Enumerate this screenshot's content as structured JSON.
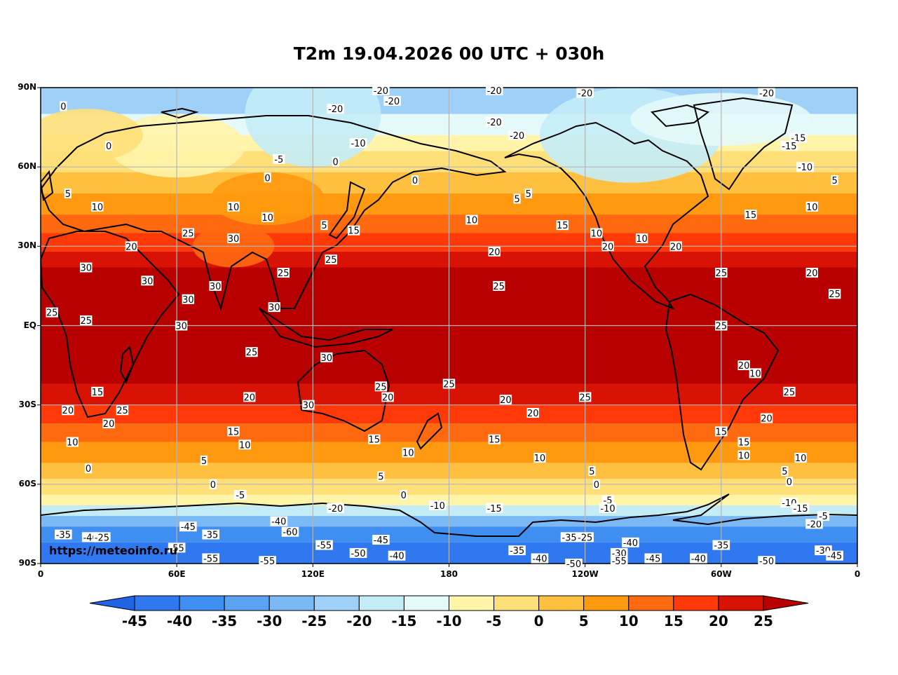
{
  "title": "T2m 19.04.2026 00 UTC + 030h",
  "watermark": "https://meteoinfo.ru",
  "lat_labels": [
    "90N",
    "60N",
    "30N",
    "EQ",
    "30S",
    "60S",
    "90S"
  ],
  "lon_labels": [
    "0",
    "60E",
    "120E",
    "180",
    "120W",
    "60W",
    "0"
  ],
  "colorbar": {
    "levels": [
      "-45",
      "-40",
      "-35",
      "-30",
      "-25",
      "-20",
      "-15",
      "-10",
      "-5",
      "0",
      "5",
      "10",
      "15",
      "20",
      "25"
    ],
    "colors": [
      "#1f64e6",
      "#2f78f0",
      "#3f8ef2",
      "#5aa2f2",
      "#7ab9f6",
      "#9ed0f8",
      "#c4ecf7",
      "#e4f9f9",
      "#fff4a8",
      "#ffe078",
      "#ffc040",
      "#ff9a10",
      "#ff6a10",
      "#ff3a08",
      "#d81204",
      "#b80000"
    ],
    "extend": "both"
  },
  "contour_labels": [
    {
      "lon": 20,
      "lat": 22,
      "t": "30"
    },
    {
      "lon": 5,
      "lat": 5,
      "t": "25"
    },
    {
      "lon": 20,
      "lat": 2,
      "t": "25"
    },
    {
      "lon": 65,
      "lat": 10,
      "t": "30"
    },
    {
      "lon": 25,
      "lat": -25,
      "t": "15"
    },
    {
      "lon": 12,
      "lat": -32,
      "t": "20"
    },
    {
      "lon": 30,
      "lat": -37,
      "t": "20"
    },
    {
      "lon": 36,
      "lat": -32,
      "t": "25"
    },
    {
      "lon": 14,
      "lat": -44,
      "t": "10"
    },
    {
      "lon": 21,
      "lat": -54,
      "t": "0"
    },
    {
      "lon": 85,
      "lat": 33,
      "t": "30"
    },
    {
      "lon": 65,
      "lat": 35,
      "t": "25"
    },
    {
      "lon": 77,
      "lat": 15,
      "t": "30"
    },
    {
      "lon": 103,
      "lat": 7,
      "t": "30"
    },
    {
      "lon": 107,
      "lat": 20,
      "t": "25"
    },
    {
      "lon": 128,
      "lat": 25,
      "t": "25"
    },
    {
      "lon": 118,
      "lat": -30,
      "t": "30"
    },
    {
      "lon": 126,
      "lat": -12,
      "t": "30"
    },
    {
      "lon": 150,
      "lat": -23,
      "t": "25"
    },
    {
      "lon": 162,
      "lat": -48,
      "t": "10"
    },
    {
      "lon": 180,
      "lat": -22,
      "t": "25"
    },
    {
      "lon": 190,
      "lat": 40,
      "t": "10"
    },
    {
      "lon": 200,
      "lat": 28,
      "t": "20"
    },
    {
      "lon": 202,
      "lat": 15,
      "t": "25"
    },
    {
      "lon": 215,
      "lat": 50,
      "t": "5"
    },
    {
      "lon": 230,
      "lat": 38,
      "t": "15"
    },
    {
      "lon": 240,
      "lat": -27,
      "t": "25"
    },
    {
      "lon": 217,
      "lat": -33,
      "t": "20"
    },
    {
      "lon": 200,
      "lat": -43,
      "t": "15"
    },
    {
      "lon": 220,
      "lat": -50,
      "t": "10"
    },
    {
      "lon": 150,
      "lat": -57,
      "t": "5"
    },
    {
      "lon": 245,
      "lat": 35,
      "t": "10"
    },
    {
      "lon": 250,
      "lat": 30,
      "t": "20"
    },
    {
      "lon": 265,
      "lat": 33,
      "t": "10"
    },
    {
      "lon": 280,
      "lat": 30,
      "t": "20"
    },
    {
      "lon": 300,
      "lat": 20,
      "t": "25"
    },
    {
      "lon": 340,
      "lat": 20,
      "t": "20"
    },
    {
      "lon": 350,
      "lat": 12,
      "t": "25"
    },
    {
      "lon": 300,
      "lat": 0,
      "t": "25"
    },
    {
      "lon": 310,
      "lat": -15,
      "t": "20"
    },
    {
      "lon": 315,
      "lat": -18,
      "t": "10"
    },
    {
      "lon": 330,
      "lat": -25,
      "t": "25"
    },
    {
      "lon": 320,
      "lat": -35,
      "t": "20"
    },
    {
      "lon": 310,
      "lat": -44,
      "t": "15"
    },
    {
      "lon": 310,
      "lat": -49,
      "t": "10"
    },
    {
      "lon": 300,
      "lat": -40,
      "t": "15"
    },
    {
      "lon": 340,
      "lat": 45,
      "t": "10"
    },
    {
      "lon": 313,
      "lat": 42,
      "t": "15"
    },
    {
      "lon": 350,
      "lat": 55,
      "t": "5"
    },
    {
      "lon": 337,
      "lat": 60,
      "t": "-10"
    },
    {
      "lon": 210,
      "lat": 72,
      "t": "-20"
    },
    {
      "lon": 240,
      "lat": 88,
      "t": "-20"
    },
    {
      "lon": 200,
      "lat": 89,
      "t": "-20"
    },
    {
      "lon": 150,
      "lat": 89,
      "t": "-20"
    },
    {
      "lon": 155,
      "lat": 85,
      "t": "-20"
    },
    {
      "lon": 200,
      "lat": 77,
      "t": "-20"
    },
    {
      "lon": 130,
      "lat": 82,
      "t": "-20"
    },
    {
      "lon": 140,
      "lat": 69,
      "t": "-10"
    },
    {
      "lon": 320,
      "lat": 88,
      "t": "-20"
    },
    {
      "lon": 334,
      "lat": 71,
      "t": "-15"
    },
    {
      "lon": 105,
      "lat": 63,
      "t": "-5"
    },
    {
      "lon": 100,
      "lat": 56,
      "t": "0"
    },
    {
      "lon": 130,
      "lat": 62,
      "t": "0"
    },
    {
      "lon": 165,
      "lat": 55,
      "t": "0"
    },
    {
      "lon": 210,
      "lat": 48,
      "t": "5"
    },
    {
      "lon": 330,
      "lat": 68,
      "t": "-15"
    },
    {
      "lon": 10,
      "lat": 83,
      "t": "0"
    },
    {
      "lon": 30,
      "lat": 68,
      "t": "0"
    },
    {
      "lon": 12,
      "lat": 50,
      "t": "5"
    },
    {
      "lon": 25,
      "lat": 45,
      "t": "10"
    },
    {
      "lon": 85,
      "lat": 45,
      "t": "10"
    },
    {
      "lon": 100,
      "lat": 41,
      "t": "10"
    },
    {
      "lon": 125,
      "lat": 38,
      "t": "5"
    },
    {
      "lon": 138,
      "lat": 36,
      "t": "15"
    },
    {
      "lon": 205,
      "lat": -28,
      "t": "20"
    },
    {
      "lon": 92,
      "lat": -27,
      "t": "20"
    },
    {
      "lon": 85,
      "lat": -40,
      "t": "15"
    },
    {
      "lon": 90,
      "lat": -45,
      "t": "10"
    },
    {
      "lon": 72,
      "lat": -51,
      "t": "5"
    },
    {
      "lon": 76,
      "lat": -60,
      "t": "0"
    },
    {
      "lon": 88,
      "lat": -64,
      "t": "-5"
    },
    {
      "lon": 93,
      "lat": -10,
      "t": "25"
    },
    {
      "lon": 40,
      "lat": 30,
      "t": "20"
    },
    {
      "lon": 47,
      "lat": 17,
      "t": "30"
    },
    {
      "lon": 62,
      "lat": 0,
      "t": "30"
    },
    {
      "lon": 153,
      "lat": -27,
      "t": "20"
    },
    {
      "lon": 147,
      "lat": -43,
      "t": "15"
    },
    {
      "lon": 160,
      "lat": -64,
      "t": "0"
    },
    {
      "lon": 175,
      "lat": -68,
      "t": "-10"
    },
    {
      "lon": 200,
      "lat": -69,
      "t": "-15"
    },
    {
      "lon": 245,
      "lat": -60,
      "t": "0"
    },
    {
      "lon": 243,
      "lat": -55,
      "t": "5"
    },
    {
      "lon": 250,
      "lat": -66,
      "t": "-5"
    },
    {
      "lon": 250,
      "lat": -69,
      "t": "-10"
    },
    {
      "lon": 330,
      "lat": -67,
      "t": "-10"
    },
    {
      "lon": 335,
      "lat": -69,
      "t": "-15"
    },
    {
      "lon": 341,
      "lat": -75,
      "t": "-20"
    },
    {
      "lon": 330,
      "lat": -59,
      "t": "0"
    },
    {
      "lon": 328,
      "lat": -55,
      "t": "5"
    },
    {
      "lon": 335,
      "lat": -50,
      "t": "10"
    },
    {
      "lon": 345,
      "lat": -72,
      "t": "-5"
    },
    {
      "lon": 130,
      "lat": -69,
      "t": "-20"
    },
    {
      "lon": 105,
      "lat": -74,
      "t": "-40"
    },
    {
      "lon": 110,
      "lat": -78,
      "t": "-60"
    },
    {
      "lon": 125,
      "lat": -83,
      "t": "-55"
    },
    {
      "lon": 150,
      "lat": -81,
      "t": "-45"
    },
    {
      "lon": 157,
      "lat": -87,
      "t": "-40"
    },
    {
      "lon": 140,
      "lat": -86,
      "t": "-50"
    },
    {
      "lon": 100,
      "lat": -89,
      "t": "-55"
    },
    {
      "lon": 75,
      "lat": -88,
      "t": "-55"
    },
    {
      "lon": 60,
      "lat": -84,
      "t": "-55"
    },
    {
      "lon": 65,
      "lat": -76,
      "t": "-45"
    },
    {
      "lon": 75,
      "lat": -79,
      "t": "-35"
    },
    {
      "lon": 260,
      "lat": -82,
      "t": "-40"
    },
    {
      "lon": 255,
      "lat": -86,
      "t": "-30"
    },
    {
      "lon": 240,
      "lat": -80,
      "t": "-25"
    },
    {
      "lon": 233,
      "lat": -80,
      "t": "-35"
    },
    {
      "lon": 210,
      "lat": -85,
      "t": "-35"
    },
    {
      "lon": 220,
      "lat": -88,
      "t": "-40"
    },
    {
      "lon": 235,
      "lat": -90,
      "t": "-50"
    },
    {
      "lon": 255,
      "lat": -89,
      "t": "-55"
    },
    {
      "lon": 270,
      "lat": -88,
      "t": "-45"
    },
    {
      "lon": 290,
      "lat": -88,
      "t": "-40"
    },
    {
      "lon": 300,
      "lat": -83,
      "t": "-35"
    },
    {
      "lon": 320,
      "lat": -89,
      "t": "-50"
    },
    {
      "lon": 345,
      "lat": -85,
      "t": "-30"
    },
    {
      "lon": 350,
      "lat": -87,
      "t": "-45"
    },
    {
      "lon": 10,
      "lat": -79,
      "t": "-35"
    },
    {
      "lon": 22,
      "lat": -80,
      "t": "-40"
    },
    {
      "lon": 27,
      "lat": -80,
      "t": "-25"
    }
  ]
}
